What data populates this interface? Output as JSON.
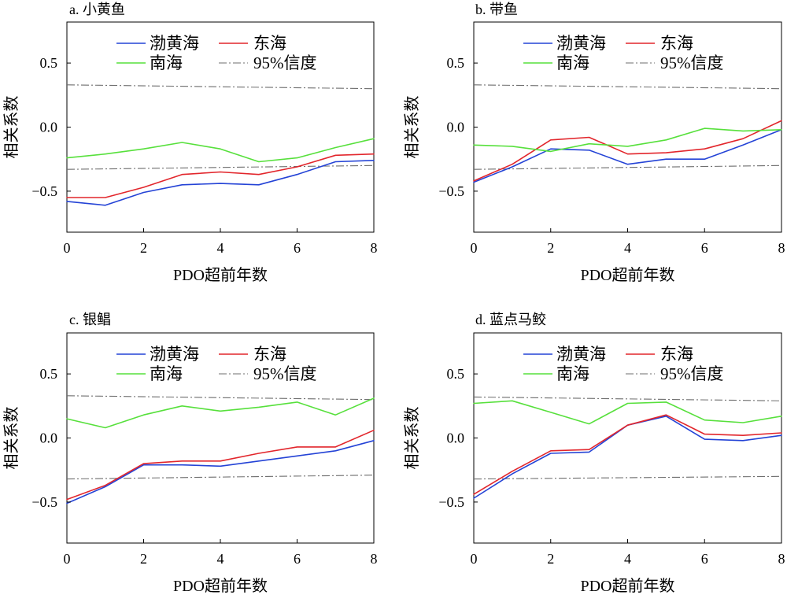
{
  "chart_data": [
    {
      "type": "line",
      "title": "a. 小黄鱼",
      "xlabel": "PDO超前年数",
      "ylabel": "相关系数",
      "x": [
        0,
        1,
        2,
        3,
        4,
        5,
        6,
        7,
        8
      ],
      "xlim": [
        0,
        8
      ],
      "ylim": [
        -0.82,
        0.82
      ],
      "xticks": [
        0,
        2,
        4,
        6,
        8
      ],
      "xtick_labels": [
        "0",
        "2",
        "4",
        "6",
        "8"
      ],
      "yticks": [
        -0.5,
        0,
        0.5
      ],
      "ytick_labels": [
        "−0.5",
        "0.0",
        "0.5"
      ],
      "grid": false,
      "legend": "upper-center",
      "series": [
        {
          "name": "渤黄海",
          "color": "#2443d6",
          "values": [
            -0.58,
            -0.61,
            -0.51,
            -0.45,
            -0.44,
            -0.45,
            -0.37,
            -0.27,
            -0.26
          ]
        },
        {
          "name": "东海",
          "color": "#e2262c",
          "values": [
            -0.55,
            -0.55,
            -0.47,
            -0.37,
            -0.35,
            -0.37,
            -0.31,
            -0.22,
            -0.21
          ]
        },
        {
          "name": "南海",
          "color": "#57e03c",
          "values": [
            -0.24,
            -0.21,
            -0.17,
            -0.12,
            -0.17,
            -0.27,
            -0.24,
            -0.16,
            -0.09
          ]
        }
      ],
      "confidence_95": {
        "name": "95%信度",
        "color": "#6e6e6e",
        "x": [
          0,
          8
        ],
        "upper": [
          0.33,
          0.3
        ],
        "lower": [
          -0.33,
          -0.3
        ]
      }
    },
    {
      "type": "line",
      "title": "b. 带鱼",
      "xlabel": "PDO超前年数",
      "ylabel": "相关系数",
      "x": [
        0,
        1,
        2,
        3,
        4,
        5,
        6,
        7,
        8
      ],
      "xlim": [
        0,
        8
      ],
      "ylim": [
        -0.82,
        0.82
      ],
      "xticks": [
        0,
        2,
        4,
        6,
        8
      ],
      "xtick_labels": [
        "0",
        "2",
        "4",
        "6",
        "8"
      ],
      "yticks": [
        -0.5,
        0,
        0.5
      ],
      "ytick_labels": [
        "−0.5",
        "0.0",
        "0.5"
      ],
      "grid": false,
      "legend": "upper-center",
      "series": [
        {
          "name": "渤黄海",
          "color": "#2443d6",
          "values": [
            -0.43,
            -0.31,
            -0.17,
            -0.18,
            -0.29,
            -0.25,
            -0.25,
            -0.14,
            -0.02
          ]
        },
        {
          "name": "东海",
          "color": "#e2262c",
          "values": [
            -0.42,
            -0.29,
            -0.1,
            -0.08,
            -0.21,
            -0.2,
            -0.17,
            -0.09,
            0.05
          ]
        },
        {
          "name": "南海",
          "color": "#57e03c",
          "values": [
            -0.14,
            -0.15,
            -0.19,
            -0.13,
            -0.15,
            -0.1,
            -0.01,
            -0.03,
            -0.02
          ]
        }
      ],
      "confidence_95": {
        "name": "95%信度",
        "color": "#6e6e6e",
        "x": [
          0,
          8
        ],
        "upper": [
          0.33,
          0.3
        ],
        "lower": [
          -0.33,
          -0.3
        ]
      }
    },
    {
      "type": "line",
      "title": "c. 银鲳",
      "xlabel": "PDO超前年数",
      "ylabel": "相关系数",
      "x": [
        0,
        1,
        2,
        3,
        4,
        5,
        6,
        7,
        8
      ],
      "xlim": [
        0,
        8
      ],
      "ylim": [
        -0.82,
        0.82
      ],
      "xticks": [
        0,
        2,
        4,
        6,
        8
      ],
      "xtick_labels": [
        "0",
        "2",
        "4",
        "6",
        "8"
      ],
      "yticks": [
        -0.5,
        0,
        0.5
      ],
      "ytick_labels": [
        "−0.5",
        "0.0",
        "0.5"
      ],
      "grid": false,
      "legend": "upper-center",
      "series": [
        {
          "name": "渤黄海",
          "color": "#2443d6",
          "values": [
            -0.51,
            -0.38,
            -0.21,
            -0.21,
            -0.22,
            -0.18,
            -0.14,
            -0.1,
            -0.02
          ]
        },
        {
          "name": "东海",
          "color": "#e2262c",
          "values": [
            -0.48,
            -0.37,
            -0.2,
            -0.18,
            -0.18,
            -0.12,
            -0.07,
            -0.07,
            0.06
          ]
        },
        {
          "name": "南海",
          "color": "#57e03c",
          "values": [
            0.15,
            0.08,
            0.18,
            0.25,
            0.21,
            0.24,
            0.28,
            0.18,
            0.31
          ]
        }
      ],
      "confidence_95": {
        "name": "95%信度",
        "color": "#6e6e6e",
        "x": [
          0,
          8
        ],
        "upper": [
          0.33,
          0.3
        ],
        "lower": [
          -0.32,
          -0.29
        ]
      }
    },
    {
      "type": "line",
      "title": "d. 蓝点马鲛",
      "xlabel": "PDO超前年数",
      "ylabel": "相关系数",
      "x": [
        0,
        1,
        2,
        3,
        4,
        5,
        6,
        7,
        8
      ],
      "xlim": [
        0,
        8
      ],
      "ylim": [
        -0.82,
        0.82
      ],
      "xticks": [
        0,
        2,
        4,
        6,
        8
      ],
      "xtick_labels": [
        "0",
        "2",
        "4",
        "6",
        "8"
      ],
      "yticks": [
        -0.5,
        0,
        0.5
      ],
      "ytick_labels": [
        "−0.5",
        "0.0",
        "0.5"
      ],
      "grid": false,
      "legend": "upper-center",
      "series": [
        {
          "name": "渤黄海",
          "color": "#2443d6",
          "values": [
            -0.47,
            -0.28,
            -0.12,
            -0.11,
            0.1,
            0.17,
            -0.01,
            -0.02,
            0.02
          ]
        },
        {
          "name": "东海",
          "color": "#e2262c",
          "values": [
            -0.44,
            -0.26,
            -0.1,
            -0.09,
            0.1,
            0.18,
            0.03,
            0.02,
            0.04
          ]
        },
        {
          "name": "南海",
          "color": "#57e03c",
          "values": [
            0.27,
            0.29,
            0.2,
            0.11,
            0.27,
            0.28,
            0.14,
            0.12,
            0.17
          ]
        }
      ],
      "confidence_95": {
        "name": "95%信度",
        "color": "#6e6e6e",
        "x": [
          0,
          8
        ],
        "upper": [
          0.32,
          0.29
        ],
        "lower": [
          -0.32,
          -0.3
        ]
      }
    }
  ]
}
